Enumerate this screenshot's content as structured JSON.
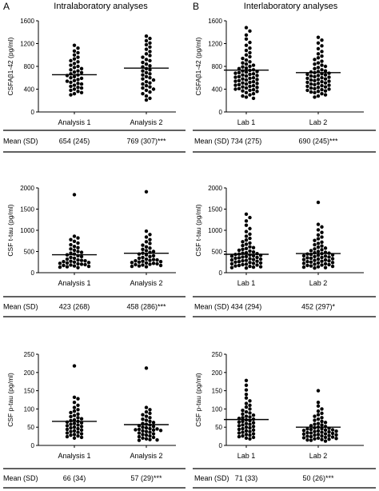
{
  "chart_data": [
    {
      "type": "scatter",
      "panel_letter": "A",
      "panel_title": "Intralaboratory analyses",
      "ylabel": "CSFAβ1-42 (pg/ml)",
      "ylim": [
        0,
        1600
      ],
      "yticks": [
        "0",
        "400",
        "800",
        "1200",
        "1600"
      ],
      "categories": [
        "Analysis 1",
        "Analysis 2"
      ],
      "series": [
        {
          "values": [
            1170,
            1120,
            1070,
            1040,
            1000,
            960,
            930,
            900,
            880,
            850,
            820,
            800,
            780,
            760,
            740,
            720,
            700,
            690,
            670,
            650,
            640,
            620,
            600,
            590,
            570,
            550,
            540,
            520,
            500,
            490,
            470,
            450,
            430,
            420,
            400,
            380,
            360,
            340,
            320,
            300
          ],
          "mean": 654
        },
        {
          "values": [
            1330,
            1290,
            1250,
            1210,
            1180,
            1140,
            1100,
            1060,
            1020,
            990,
            960,
            920,
            900,
            870,
            840,
            810,
            790,
            760,
            740,
            720,
            690,
            670,
            650,
            620,
            600,
            580,
            560,
            530,
            510,
            490,
            460,
            440,
            420,
            400,
            380,
            350,
            320,
            280,
            240,
            210
          ],
          "mean": 769
        }
      ],
      "table": {
        "label": "Mean (SD)",
        "values": [
          "654 (245)",
          "769 (307)***"
        ]
      }
    },
    {
      "type": "scatter",
      "panel_letter": "B",
      "panel_title": "Interlaboratory analyses",
      "ylabel": "CSFAβ1-42 (pg/ml)",
      "ylim": [
        0,
        1600
      ],
      "yticks": [
        "0",
        "400",
        "800",
        "1200",
        "1600"
      ],
      "categories": [
        "Lab 1",
        "Lab 2"
      ],
      "series": [
        {
          "values": [
            1480,
            1420,
            1350,
            1280,
            1220,
            1170,
            1120,
            1080,
            1040,
            1000,
            970,
            940,
            910,
            880,
            860,
            840,
            820,
            800,
            790,
            770,
            760,
            740,
            730,
            720,
            710,
            700,
            690,
            680,
            670,
            660,
            650,
            640,
            630,
            620,
            610,
            600,
            590,
            580,
            570,
            560,
            550,
            540,
            530,
            520,
            510,
            500,
            490,
            480,
            470,
            460,
            450,
            440,
            430,
            420,
            410,
            400,
            390,
            380,
            370,
            360,
            340,
            320,
            300,
            280,
            260,
            240
          ],
          "mean": 734
        },
        {
          "values": [
            1310,
            1260,
            1210,
            1160,
            1110,
            1060,
            1020,
            980,
            950,
            920,
            890,
            860,
            840,
            820,
            800,
            780,
            760,
            740,
            720,
            710,
            700,
            690,
            680,
            670,
            660,
            650,
            640,
            630,
            620,
            610,
            600,
            590,
            580,
            570,
            560,
            550,
            540,
            530,
            520,
            510,
            500,
            490,
            480,
            470,
            460,
            450,
            440,
            430,
            420,
            410,
            400,
            390,
            380,
            370,
            360,
            350,
            340,
            320,
            300,
            280,
            260
          ],
          "mean": 690
        }
      ],
      "table": {
        "label": "Mean (SD)",
        "values": [
          "734 (275)",
          "690 (245)***"
        ]
      }
    },
    {
      "type": "scatter",
      "ylabel": "CSF t-tau (pg/ml)",
      "ylim": [
        0,
        2000
      ],
      "yticks": [
        "0",
        "500",
        "1000",
        "1500",
        "2000"
      ],
      "categories": [
        "Analysis 1",
        "Analysis 2"
      ],
      "series": [
        {
          "values": [
            1840,
            860,
            820,
            780,
            740,
            700,
            660,
            620,
            590,
            560,
            530,
            500,
            480,
            460,
            440,
            420,
            400,
            380,
            360,
            340,
            320,
            300,
            290,
            280,
            270,
            260,
            250,
            240,
            230,
            220,
            210,
            200,
            190,
            180,
            170,
            160,
            150,
            140,
            130,
            120
          ],
          "mean": 423
        },
        {
          "values": [
            1910,
            980,
            900,
            840,
            780,
            730,
            690,
            650,
            610,
            580,
            550,
            520,
            500,
            480,
            460,
            440,
            420,
            400,
            380,
            360,
            340,
            320,
            310,
            300,
            290,
            280,
            270,
            260,
            250,
            240,
            230,
            220,
            210,
            200,
            190,
            180,
            170,
            160,
            150,
            140
          ],
          "mean": 458
        }
      ],
      "table": {
        "label": "Mean (SD)",
        "values": [
          "423 (268)",
          "458 (286)***"
        ]
      }
    },
    {
      "type": "scatter",
      "ylabel": "CSF t-tau (pg/ml)",
      "ylim": [
        0,
        2000
      ],
      "yticks": [
        "0",
        "500",
        "1000",
        "1500",
        "2000"
      ],
      "categories": [
        "Lab 1",
        "Lab 2"
      ],
      "series": [
        {
          "values": [
            1380,
            1300,
            1220,
            1120,
            1040,
            970,
            910,
            860,
            810,
            770,
            730,
            700,
            670,
            640,
            610,
            590,
            570,
            550,
            530,
            510,
            490,
            470,
            460,
            450,
            440,
            430,
            420,
            410,
            400,
            390,
            380,
            370,
            360,
            350,
            340,
            330,
            320,
            310,
            300,
            290,
            280,
            270,
            260,
            250,
            240,
            230,
            220,
            210,
            200,
            190,
            180,
            170,
            160,
            150,
            140,
            130,
            120,
            110
          ],
          "mean": 434
        },
        {
          "values": [
            1660,
            1140,
            1080,
            1010,
            950,
            890,
            840,
            800,
            760,
            720,
            690,
            660,
            630,
            600,
            580,
            560,
            540,
            520,
            500,
            480,
            470,
            460,
            450,
            440,
            430,
            420,
            410,
            400,
            390,
            380,
            370,
            360,
            350,
            340,
            330,
            320,
            310,
            300,
            290,
            280,
            270,
            260,
            250,
            240,
            230,
            220,
            210,
            200,
            190,
            180,
            170,
            160,
            150,
            140,
            130,
            120,
            110
          ],
          "mean": 452
        }
      ],
      "table": {
        "label": "Mean (SD)",
        "values": [
          "434 (294)",
          "452 (297)*"
        ]
      }
    },
    {
      "type": "scatter",
      "ylabel": "CSF p-tau (pg/ml)",
      "ylim": [
        0,
        250
      ],
      "yticks": [
        "0",
        "50",
        "100",
        "150",
        "200",
        "250"
      ],
      "categories": [
        "Analysis 1",
        "Analysis 2"
      ],
      "series": [
        {
          "values": [
            218,
            132,
            128,
            118,
            110,
            104,
            98,
            94,
            90,
            86,
            82,
            79,
            76,
            73,
            70,
            68,
            66,
            64,
            62,
            60,
            58,
            56,
            54,
            52,
            50,
            48,
            46,
            44,
            42,
            40,
            38,
            36,
            34,
            32,
            30,
            28,
            26,
            24,
            22,
            20
          ],
          "mean": 66
        },
        {
          "values": [
            212,
            104,
            98,
            92,
            88,
            84,
            80,
            76,
            72,
            69,
            66,
            63,
            60,
            58,
            56,
            54,
            52,
            50,
            48,
            46,
            45,
            44,
            43,
            42,
            41,
            40,
            38,
            36,
            34,
            32,
            30,
            28,
            26,
            24,
            22,
            20,
            18,
            16,
            15,
            14
          ],
          "mean": 57
        }
      ],
      "table": {
        "label": "Mean (SD)",
        "values": [
          "66 (34)",
          "57 (29)***"
        ]
      }
    },
    {
      "type": "scatter",
      "ylabel": "CSF p-tau (pg/ml)",
      "ylim": [
        0,
        250
      ],
      "yticks": [
        "0",
        "50",
        "100",
        "150",
        "200",
        "250"
      ],
      "categories": [
        "Lab 1",
        "Lab 2"
      ],
      "series": [
        {
          "values": [
            178,
            165,
            152,
            140,
            130,
            122,
            115,
            110,
            105,
            100,
            96,
            92,
            89,
            86,
            83,
            80,
            78,
            76,
            74,
            72,
            70,
            68,
            66,
            64,
            62,
            60,
            58,
            56,
            54,
            52,
            50,
            48,
            46,
            44,
            42,
            40,
            38,
            36,
            34,
            32,
            30,
            28,
            26,
            24,
            22,
            20,
            18
          ],
          "mean": 71
        },
        {
          "values": [
            150,
            118,
            108,
            100,
            94,
            88,
            84,
            80,
            76,
            72,
            69,
            66,
            63,
            60,
            58,
            56,
            54,
            52,
            50,
            48,
            47,
            46,
            45,
            44,
            43,
            42,
            41,
            40,
            39,
            38,
            37,
            36,
            35,
            34,
            33,
            32,
            31,
            30,
            29,
            28,
            27,
            26,
            25,
            24,
            23,
            22,
            21,
            20,
            19,
            18,
            17,
            16,
            15,
            14,
            12
          ],
          "mean": 50
        }
      ],
      "table": {
        "label": "Mean (SD)",
        "values": [
          "71 (33)",
          "50 (26)***"
        ]
      }
    }
  ]
}
